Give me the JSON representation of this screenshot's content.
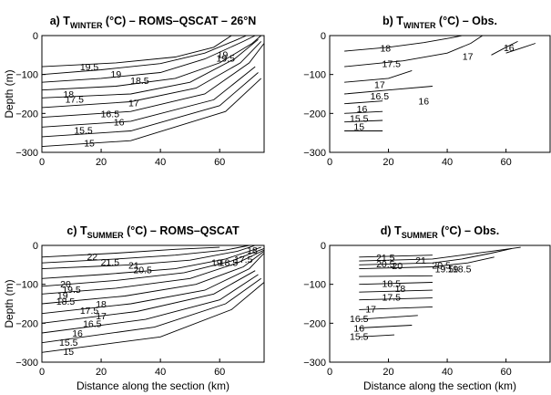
{
  "chart_data": [
    {
      "type": "contour",
      "panel": "a",
      "title": {
        "prefix": "a) T",
        "sub": "WINTER",
        "suffix": " (°C) – ROMS–QSCAT – 26°N"
      },
      "xlabel": "",
      "ylabel": "Depth (m)",
      "xlim": [
        0,
        75
      ],
      "ylim": [
        -300,
        0
      ],
      "xticks": [
        "0",
        "20",
        "40",
        "60"
      ],
      "yticks": [
        "0",
        "−100",
        "−200",
        "−300"
      ],
      "contour_labels": [
        {
          "text": "19.5",
          "x": 16,
          "y": -80
        },
        {
          "text": "19",
          "x": 25,
          "y": -98
        },
        {
          "text": "18.5",
          "x": 33,
          "y": -115
        },
        {
          "text": "19",
          "x": 61,
          "y": -48
        },
        {
          "text": "19.5",
          "x": 62,
          "y": -58
        },
        {
          "text": "18",
          "x": 9,
          "y": -150
        },
        {
          "text": "17.5",
          "x": 11,
          "y": -163
        },
        {
          "text": "17",
          "x": 31,
          "y": -172
        },
        {
          "text": "16.5",
          "x": 23,
          "y": -200
        },
        {
          "text": "16",
          "x": 26,
          "y": -222
        },
        {
          "text": "15.5",
          "x": 14,
          "y": -242
        },
        {
          "text": "15",
          "x": 16,
          "y": -275
        }
      ]
    },
    {
      "type": "contour",
      "panel": "b",
      "title": {
        "prefix": "b) T",
        "sub": "WINTER",
        "suffix": " (°C) – Obs."
      },
      "xlabel": "",
      "ylabel": "",
      "xlim": [
        0,
        75
      ],
      "ylim": [
        -300,
        0
      ],
      "xticks": [
        "0",
        "20",
        "40",
        "60"
      ],
      "yticks": [
        "0",
        "−100",
        "−200",
        "−300"
      ],
      "contour_labels": [
        {
          "text": "18",
          "x": 19,
          "y": -32
        },
        {
          "text": "17.5",
          "x": 21,
          "y": -72
        },
        {
          "text": "17",
          "x": 47,
          "y": -53
        },
        {
          "text": "16",
          "x": 61,
          "y": -30
        },
        {
          "text": "17",
          "x": 17,
          "y": -125
        },
        {
          "text": "16.5",
          "x": 17,
          "y": -155
        },
        {
          "text": "16",
          "x": 32,
          "y": -168
        },
        {
          "text": "16",
          "x": 11,
          "y": -187
        },
        {
          "text": "15.5",
          "x": 10,
          "y": -212
        },
        {
          "text": "15",
          "x": 10,
          "y": -233
        }
      ]
    },
    {
      "type": "contour",
      "panel": "c",
      "title": {
        "prefix": "c) T",
        "sub": "SUMMER",
        "suffix": " (°C) – ROMS–QSCAT"
      },
      "xlabel": "Distance along the section (km)",
      "ylabel": "Depth (m)",
      "xlim": [
        0,
        75
      ],
      "ylim": [
        -300,
        0
      ],
      "xticks": [
        "0",
        "20",
        "40",
        "60"
      ],
      "yticks": [
        "0",
        "−100",
        "−200",
        "−300"
      ],
      "contour_labels": [
        {
          "text": "22",
          "x": 17,
          "y": -28
        },
        {
          "text": "21.5",
          "x": 23,
          "y": -42
        },
        {
          "text": "21",
          "x": 31,
          "y": -50
        },
        {
          "text": "20.5",
          "x": 34,
          "y": -62
        },
        {
          "text": "20",
          "x": 8,
          "y": -98
        },
        {
          "text": "19.5",
          "x": 10,
          "y": -112
        },
        {
          "text": "19",
          "x": 7,
          "y": -128
        },
        {
          "text": "18.5",
          "x": 8,
          "y": -143
        },
        {
          "text": "18",
          "x": 20,
          "y": -150
        },
        {
          "text": "17.5",
          "x": 16,
          "y": -166
        },
        {
          "text": "17",
          "x": 20,
          "y": -180
        },
        {
          "text": "16.5",
          "x": 17,
          "y": -200
        },
        {
          "text": "16",
          "x": 12,
          "y": -225
        },
        {
          "text": "15.5",
          "x": 9,
          "y": -248
        },
        {
          "text": "15",
          "x": 9,
          "y": -272
        },
        {
          "text": "19",
          "x": 59,
          "y": -43
        },
        {
          "text": "18.5",
          "x": 63,
          "y": -43
        },
        {
          "text": "17.5",
          "x": 68,
          "y": -35
        },
        {
          "text": "18",
          "x": 71,
          "y": -12
        }
      ]
    },
    {
      "type": "contour",
      "panel": "d",
      "title": {
        "prefix": "d) T",
        "sub": "SUMMER",
        "suffix": " (°C) – Obs."
      },
      "xlabel": "Distance along the section (km)",
      "ylabel": "",
      "xlim": [
        0,
        75
      ],
      "ylim": [
        -300,
        0
      ],
      "xticks": [
        "0",
        "20",
        "40",
        "60"
      ],
      "yticks": [
        "0",
        "−100",
        "−200",
        "−300"
      ],
      "contour_labels": [
        {
          "text": "21.5",
          "x": 19,
          "y": -30
        },
        {
          "text": "21",
          "x": 31,
          "y": -38
        },
        {
          "text": "20.5",
          "x": 38,
          "y": -50
        },
        {
          "text": "20",
          "x": 23,
          "y": -52
        },
        {
          "text": "20.5",
          "x": 19,
          "y": -47
        },
        {
          "text": "19.5",
          "x": 39,
          "y": -60
        },
        {
          "text": "19",
          "x": 42,
          "y": -60
        },
        {
          "text": "18.5",
          "x": 45,
          "y": -60
        },
        {
          "text": "18.5",
          "x": 21,
          "y": -97
        },
        {
          "text": "18",
          "x": 24,
          "y": -110
        },
        {
          "text": "17.5",
          "x": 21,
          "y": -132
        },
        {
          "text": "17",
          "x": 14,
          "y": -163
        },
        {
          "text": "16.5",
          "x": 10,
          "y": -188
        },
        {
          "text": "16",
          "x": 10,
          "y": -212
        },
        {
          "text": "15.5",
          "x": 10,
          "y": -233
        }
      ]
    }
  ]
}
